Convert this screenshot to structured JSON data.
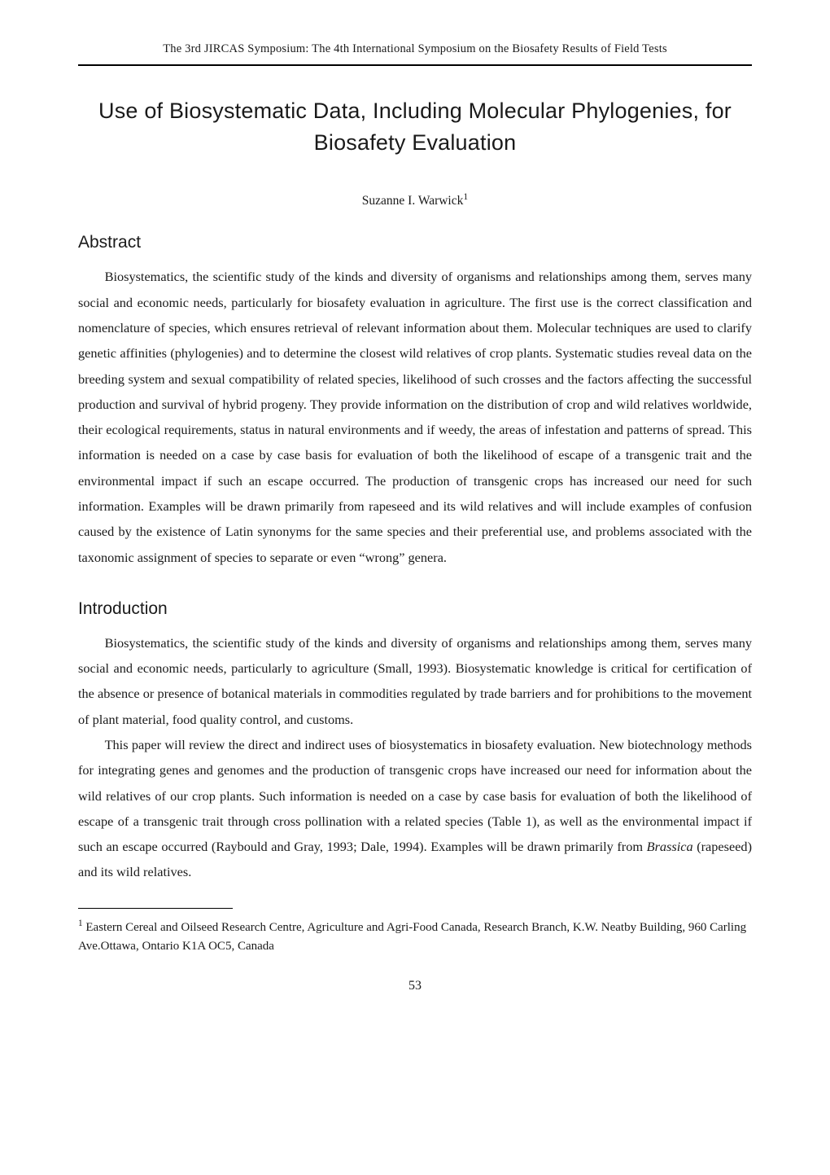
{
  "header": {
    "running_header": "The 3rd JIRCAS Symposium: The 4th International Symposium on the Biosafety Results of Field Tests"
  },
  "title": "Use of Biosystematic Data, Including Molecular Phylogenies, for Biosafety Evaluation",
  "author": {
    "name": "Suzanne I. Warwick",
    "marker": "1"
  },
  "sections": {
    "abstract": {
      "heading": "Abstract",
      "text": "Biosystematics, the scientific study of the kinds and diversity of organisms and relationships among them, serves many social and economic needs, particularly for biosafety evaluation in agriculture.   The first use is the correct classification and nomenclature of species, which ensures retrieval of relevant information about them.   Molecular techniques are used to clarify genetic affinities (phylogenies) and to determine the closest wild relatives of crop plants.   Systematic studies reveal data on the breeding system and sexual compatibility of related species, likelihood of such crosses and the factors affecting the successful production and survival of hybrid progeny.   They provide information on the distribution of crop and wild relatives worldwide, their ecological requirements, status in natural environments and if weedy, the areas of infestation and patterns of spread.   This information is needed on a case by case basis for evaluation of both the likelihood of escape of a transgenic trait and the environmental impact if such an escape occurred.   The production of transgenic crops has increased our need for such information.   Examples will be drawn primarily from rapeseed and its wild relatives and will include examples of confusion caused by the existence of Latin synonyms for the same species and their preferential use, and problems associated with the taxonomic assignment of species to separate or even   “wrong”   genera."
    },
    "introduction": {
      "heading": "Introduction",
      "para1": "Biosystematics, the scientific study of the kinds and diversity of organisms and relationships among them, serves many social and economic needs, particularly to agriculture (Small, 1993).   Biosystematic knowledge is critical for certification of the absence or presence of botanical materials in commodities regulated by trade barriers and for prohibitions to the movement of plant material, food quality control, and customs.",
      "para2_pre": "This paper will review the direct and indirect uses of biosystematics in  biosafety evaluation.   New biotechnology methods for integrating genes and genomes and the production of transgenic crops have increased our need for information about the wild relatives of our crop plants.   Such information is needed on a case by case basis for evaluation of both the likelihood of escape of a transgenic trait through cross pollination with a related species (Table 1), as well as the environmental impact if such an escape occurred (Raybould and Gray, 1993; Dale, 1994).   Examples will be drawn primarily from ",
      "para2_italic": "Brassica",
      "para2_post": " (rapeseed) and its wild relatives."
    }
  },
  "footnote": {
    "marker": "1",
    "text": " Eastern Cereal and Oilseed Research Centre, Agriculture and Agri-Food Canada, Research Branch, K.W. Neatby Building, 960 Carling Ave.Ottawa, Ontario K1A OC5, Canada"
  },
  "page_number": "53"
}
